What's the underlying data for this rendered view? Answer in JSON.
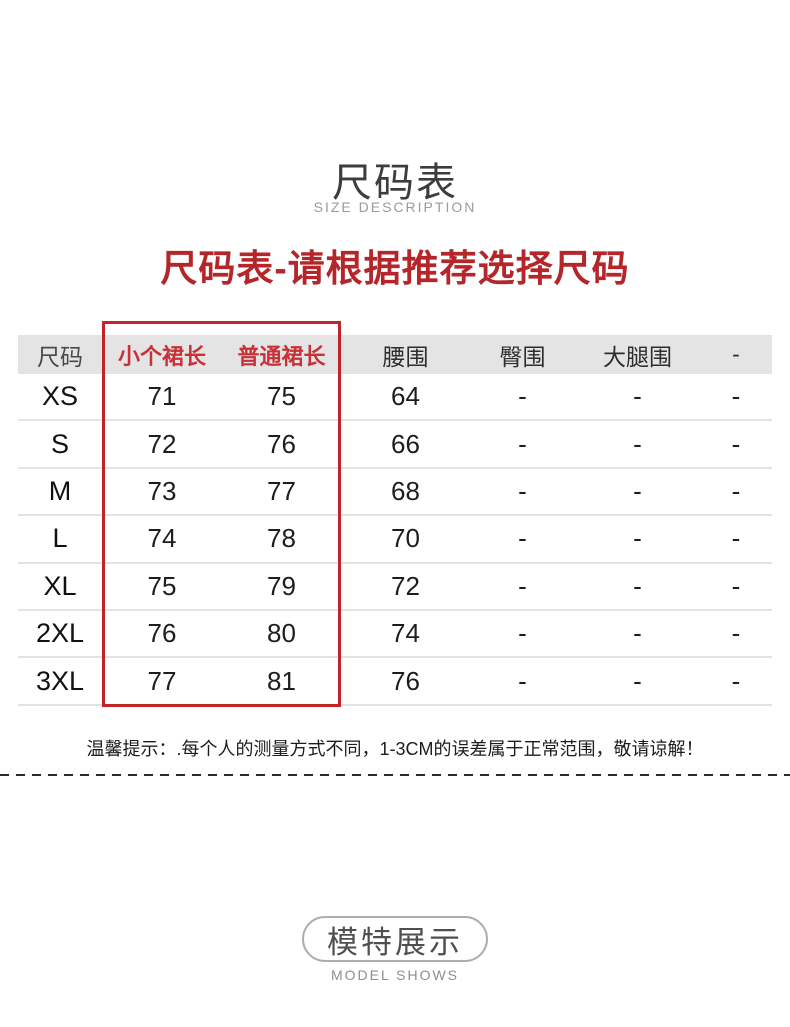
{
  "page": {
    "title": "尺码表",
    "subtitle": "SIZE DESCRIPTION",
    "heading": "尺码表-请根据推荐选择尺码",
    "note": "温馨提示：.每个人的测量方式不同，1-3CM的误差属于正常范围，敬请谅解！",
    "footer_title": "模特展示",
    "footer_subtitle": "MODEL SHOWS"
  },
  "size_table": {
    "columns": [
      "尺码",
      "小个裙长",
      "普通裙长",
      "腰围",
      "臀围",
      "大腿围",
      "-"
    ],
    "highlighted_columns": [
      "小个裙长",
      "普通裙长"
    ],
    "rows": [
      [
        "XS",
        "71",
        "75",
        "64",
        "-",
        "-",
        "-"
      ],
      [
        "S",
        "72",
        "76",
        "66",
        "-",
        "-",
        "-"
      ],
      [
        "M",
        "73",
        "77",
        "68",
        "-",
        "-",
        "-"
      ],
      [
        "L",
        "74",
        "78",
        "70",
        "-",
        "-",
        "-"
      ],
      [
        "XL",
        "75",
        "79",
        "72",
        "-",
        "-",
        "-"
      ],
      [
        "2XL",
        "76",
        "80",
        "74",
        "-",
        "-",
        "-"
      ],
      [
        "3XL",
        "77",
        "81",
        "76",
        "-",
        "-",
        "-"
      ]
    ]
  },
  "colors": {
    "accent_red": "#b5262a",
    "column_red": "#c73238",
    "box_red": "#c0232a",
    "header_bg": "#e4e4e4"
  }
}
